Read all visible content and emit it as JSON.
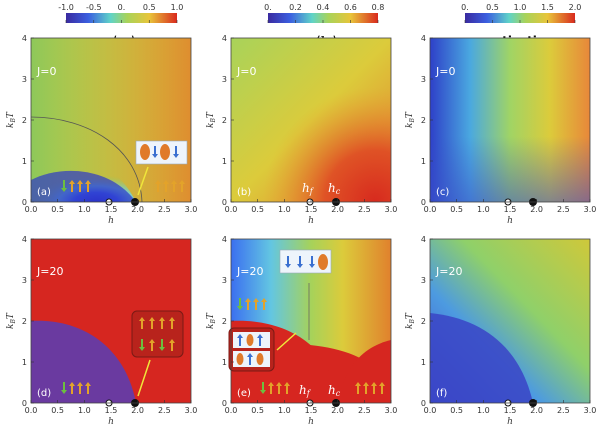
{
  "chart_data": [
    {
      "type": "heatmap",
      "panel": "(a)",
      "title": "⟨σ_i⟩",
      "J_label": "J=0",
      "xlabel": "h",
      "ylabel": "k_B T",
      "xlim": [
        0.0,
        3.0
      ],
      "ylim": [
        0,
        4
      ],
      "x_ticks": [
        "0.0",
        "0.5",
        "1.0",
        "1.5",
        "2.0",
        "2.5",
        "3.0"
      ],
      "y_ticks": [
        "0",
        "1",
        "2",
        "3",
        "4"
      ],
      "colorbar_ticks": [
        "-1.0",
        "-0.5",
        "0.",
        "0.5",
        "1.0"
      ],
      "colorbar_range": [
        -1.0,
        1.0
      ],
      "markers": [
        {
          "x": 1.5,
          "y": 0,
          "kind": "open-circle"
        },
        {
          "x": 2.0,
          "y": 0,
          "kind": "filled-circle"
        }
      ]
    },
    {
      "type": "heatmap",
      "panel": "(b)",
      "title": "⟨b_i⟩",
      "J_label": "J=0",
      "xlabel": "h",
      "ylabel": "k_B T",
      "xlim": [
        0.0,
        3.0
      ],
      "ylim": [
        0,
        4
      ],
      "x_ticks": [
        "0.0",
        "0.5",
        "1.0",
        "1.5",
        "2.0",
        "2.5",
        "3.0"
      ],
      "y_ticks": [
        "0",
        "1",
        "2",
        "3",
        "4"
      ],
      "colorbar_ticks": [
        "0.",
        "0.2",
        "0.4",
        "0.6",
        "0.8"
      ],
      "colorbar_range": [
        0.0,
        0.8
      ],
      "annotations": [
        "h_f",
        "h_c"
      ],
      "markers": [
        {
          "x": 1.5,
          "y": 0,
          "kind": "open-circle"
        },
        {
          "x": 2.0,
          "y": 0,
          "kind": "filled-circle"
        }
      ]
    },
    {
      "type": "heatmap",
      "panel": "(c)",
      "title": "magnetization",
      "J_label": "J=0",
      "xlabel": "h",
      "ylabel": "k_B T",
      "xlim": [
        0.0,
        3.0
      ],
      "ylim": [
        0,
        4
      ],
      "x_ticks": [
        "0.0",
        "0.5",
        "1.0",
        "1.5",
        "2.0",
        "2.5",
        "3.0"
      ],
      "y_ticks": [
        "0",
        "1",
        "2",
        "3",
        "4"
      ],
      "colorbar_ticks": [
        "0.",
        "0.5",
        "1.0",
        "1.5",
        "2.0"
      ],
      "colorbar_range": [
        0.0,
        2.0
      ],
      "markers": [
        {
          "x": 1.5,
          "y": 0,
          "kind": "open-circle"
        },
        {
          "x": 2.0,
          "y": 0,
          "kind": "filled-circle"
        }
      ]
    },
    {
      "type": "heatmap",
      "panel": "(d)",
      "J_label": "J=20",
      "xlabel": "h",
      "ylabel": "k_B T",
      "xlim": [
        0.0,
        3.0
      ],
      "ylim": [
        0,
        4
      ],
      "x_ticks": [
        "0.0",
        "0.5",
        "1.0",
        "1.5",
        "2.0",
        "2.5",
        "3.0"
      ],
      "y_ticks": [
        "0",
        "1",
        "2",
        "3",
        "4"
      ],
      "markers": [
        {
          "x": 1.5,
          "y": 0,
          "kind": "open-circle"
        },
        {
          "x": 2.0,
          "y": 0,
          "kind": "filled-circle"
        }
      ]
    },
    {
      "type": "heatmap",
      "panel": "(e)",
      "J_label": "J=20",
      "xlabel": "h",
      "ylabel": "k_B T",
      "xlim": [
        0.0,
        3.0
      ],
      "ylim": [
        0,
        4
      ],
      "x_ticks": [
        "0.0",
        "0.5",
        "1.0",
        "1.5",
        "2.0",
        "2.5",
        "3.0"
      ],
      "y_ticks": [
        "0",
        "1",
        "2",
        "3",
        "4"
      ],
      "annotations": [
        "h_f",
        "h_c"
      ],
      "markers": [
        {
          "x": 1.5,
          "y": 0,
          "kind": "open-circle"
        },
        {
          "x": 2.0,
          "y": 0,
          "kind": "filled-circle"
        }
      ]
    },
    {
      "type": "heatmap",
      "panel": "(f)",
      "J_label": "J=20",
      "xlabel": "h",
      "ylabel": "k_B T",
      "xlim": [
        0.0,
        3.0
      ],
      "ylim": [
        0,
        4
      ],
      "x_ticks": [
        "0.0",
        "0.5",
        "1.0",
        "1.5",
        "2.0",
        "2.5",
        "3.0"
      ],
      "y_ticks": [
        "0",
        "1",
        "2",
        "3",
        "4"
      ],
      "markers": [
        {
          "x": 1.5,
          "y": 0,
          "kind": "open-circle"
        },
        {
          "x": 2.0,
          "y": 0,
          "kind": "filled-circle"
        }
      ]
    }
  ],
  "labels": {
    "title_a": "⟨σ",
    "title_a_sub": "i",
    "title_a_close": "⟩",
    "title_b": "⟨b",
    "title_b_sub": "i",
    "title_b_close": "⟩",
    "title_c": "magnetization",
    "ylabel_main": "k",
    "ylabel_sub": "B",
    "ylabel_T": "T",
    "xlabel": "h",
    "hf": "h",
    "hf_sub": "f",
    "hc": "h",
    "hc_sub": "c"
  },
  "colors": {
    "red": "#d62620",
    "purple": "#6a3aa0",
    "blue": "#3b4fc8",
    "yellow": "#d6cf35",
    "green": "#7fbf4a",
    "orange": "#e77b2a"
  }
}
